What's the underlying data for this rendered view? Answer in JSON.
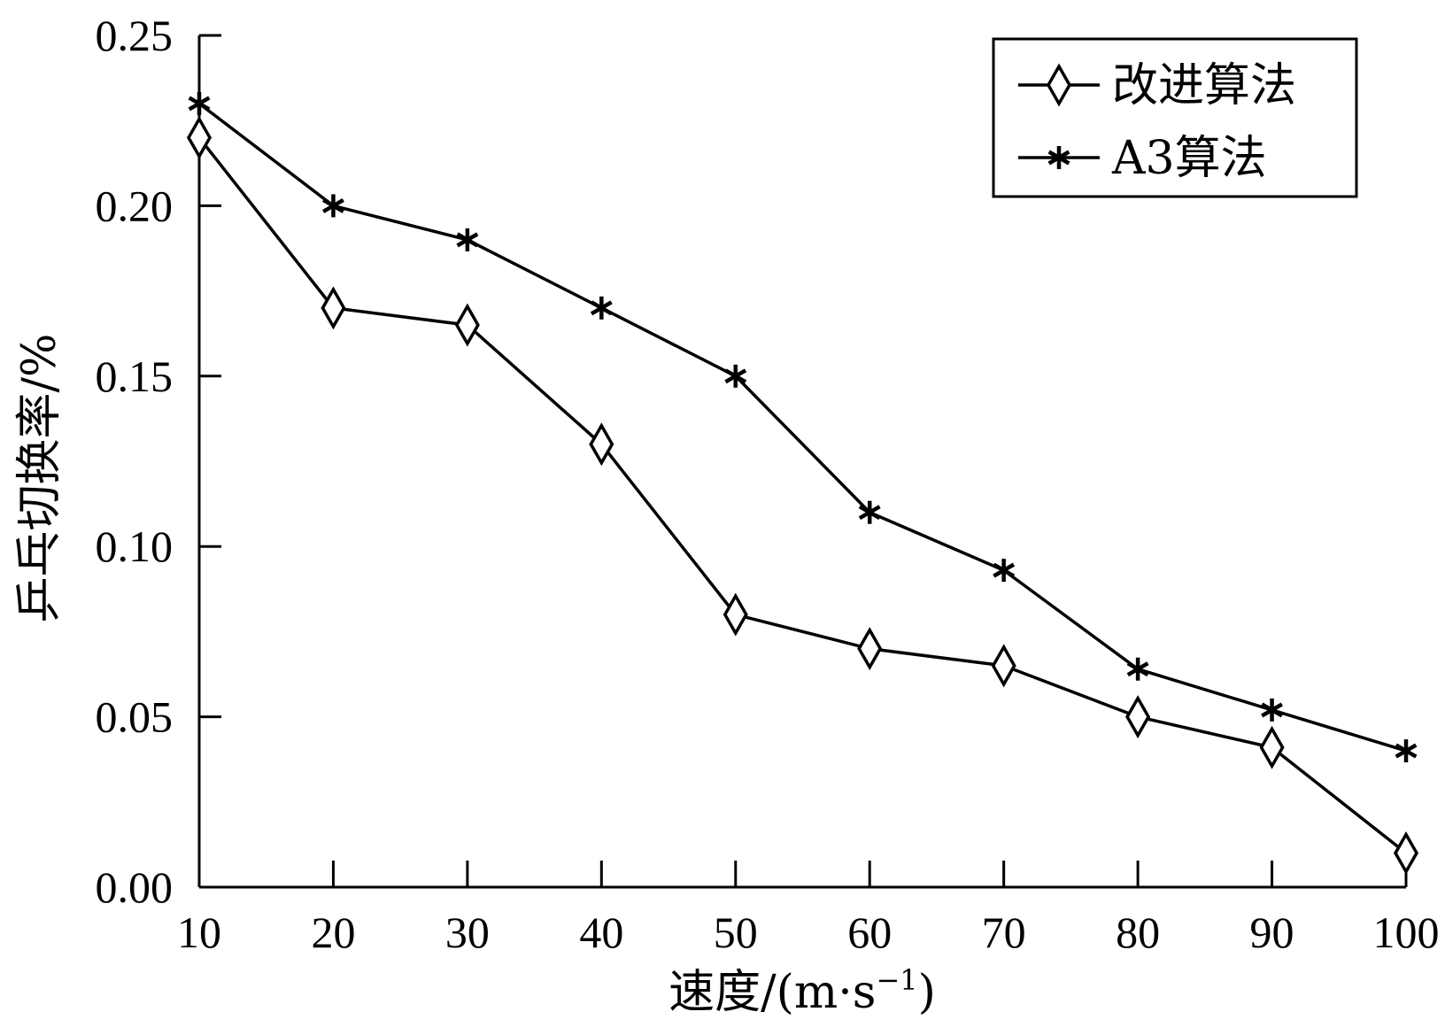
{
  "chart_data": {
    "type": "line",
    "xlabel": "速度/(m·s",
    "xlabel_unit_sup": "−1",
    "xlabel_close": ")",
    "ylabel": "乒乓切换率/%",
    "x": [
      10,
      20,
      30,
      40,
      50,
      60,
      70,
      80,
      90,
      100
    ],
    "xlim": [
      10,
      100
    ],
    "ylim": [
      0,
      0.25
    ],
    "xticks": [
      "10",
      "20",
      "30",
      "40",
      "50",
      "60",
      "70",
      "80",
      "90",
      "100"
    ],
    "yticks": [
      "0.00",
      "0.05",
      "0.10",
      "0.15",
      "0.20",
      "0.25"
    ],
    "grid": false,
    "legend_position": "top-right",
    "series": [
      {
        "name": "改进算法",
        "marker": "diamond",
        "values": [
          0.22,
          0.17,
          0.165,
          0.13,
          0.08,
          0.07,
          0.065,
          0.05,
          0.041,
          0.01
        ]
      },
      {
        "name": "A3算法",
        "marker": "asterisk",
        "values": [
          0.23,
          0.2,
          0.19,
          0.17,
          0.15,
          0.11,
          0.093,
          0.064,
          0.052,
          0.04
        ]
      }
    ]
  }
}
